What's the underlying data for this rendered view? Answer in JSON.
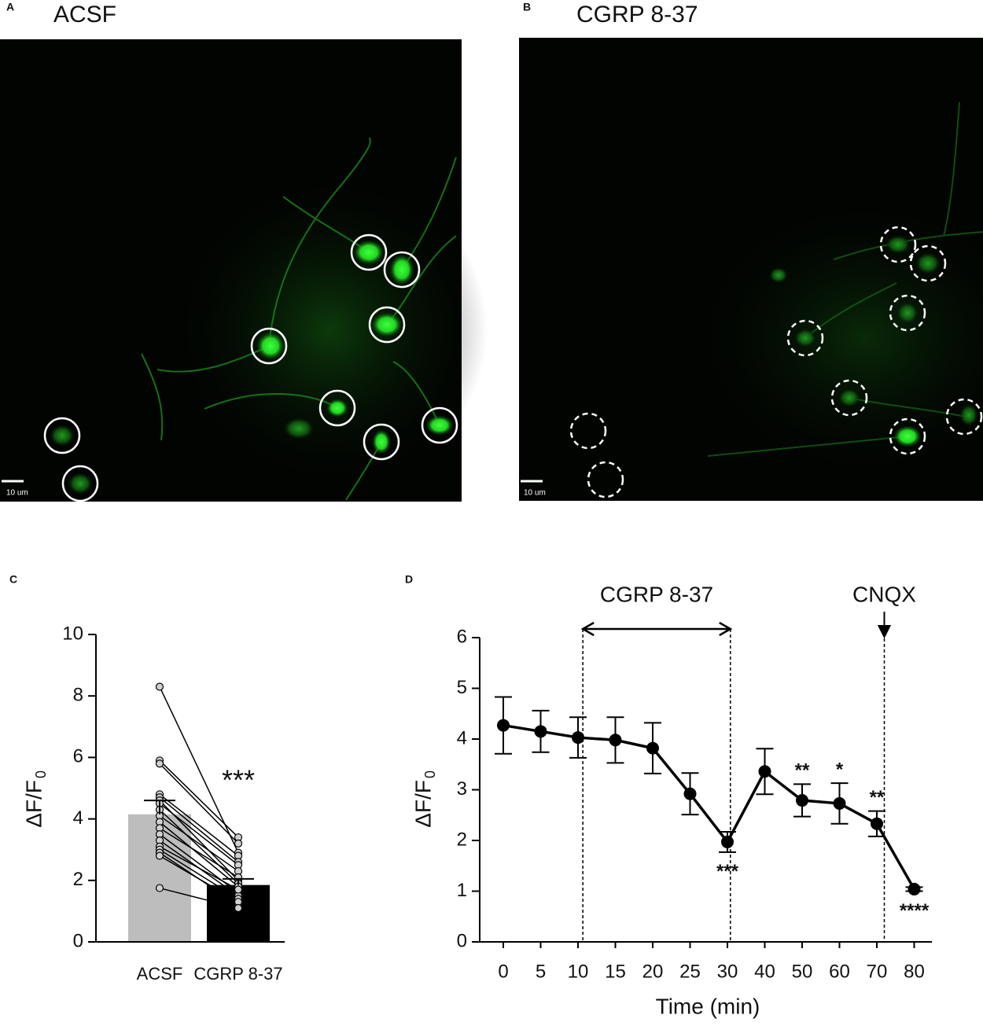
{
  "panels": {
    "A": {
      "label": "A",
      "title": "ACSF",
      "scale_bar": "10 um"
    },
    "B": {
      "label": "B",
      "title": "CGRP 8-37",
      "scale_bar": "10 um"
    }
  },
  "chart_data": [
    {
      "type": "bar",
      "label": "C",
      "y_label": "ΔF/F",
      "y_label_subscript": "0",
      "categories": [
        "ACSF",
        "CGRP 8-37"
      ],
      "values": [
        4.15,
        1.85
      ],
      "errors": [
        0.45,
        0.2
      ],
      "colors": [
        "#bdbdbd",
        "#000000"
      ],
      "paired": [
        [
          8.3,
          2.9
        ],
        [
          5.9,
          3.4
        ],
        [
          5.8,
          3.2
        ],
        [
          4.8,
          2.8
        ],
        [
          4.7,
          2.6
        ],
        [
          4.6,
          2.0
        ],
        [
          4.5,
          2.5
        ],
        [
          4.3,
          1.9
        ],
        [
          4.1,
          2.3
        ],
        [
          3.9,
          1.8
        ],
        [
          3.7,
          2.1
        ],
        [
          3.5,
          1.6
        ],
        [
          3.3,
          1.5
        ],
        [
          3.1,
          1.7
        ],
        [
          3.0,
          1.4
        ],
        [
          2.9,
          1.2
        ],
        [
          2.8,
          1.3
        ],
        [
          1.75,
          1.1
        ]
      ],
      "annotation": "***",
      "ylim": [
        0,
        10
      ],
      "yticks": [
        0,
        2,
        4,
        6,
        8,
        10
      ]
    },
    {
      "type": "line",
      "label": "D",
      "y_label": "ΔF/F",
      "y_label_subscript": "0",
      "x_label": "Time (min)",
      "categories": [
        "0",
        "5",
        "10",
        "15",
        "20",
        "25",
        "30",
        "40",
        "50",
        "60",
        "70",
        "80"
      ],
      "values": [
        4.27,
        4.15,
        4.03,
        3.98,
        3.82,
        2.92,
        1.97,
        3.36,
        2.79,
        2.73,
        2.33,
        1.04
      ],
      "errors": [
        0.56,
        0.41,
        0.4,
        0.45,
        0.5,
        0.41,
        0.2,
        0.45,
        0.32,
        0.4,
        0.25,
        0.04
      ],
      "color": "#000000",
      "annotations": [
        {
          "text": "***",
          "index": 6,
          "side": "below"
        },
        {
          "text": "**",
          "index": 8,
          "side": "above"
        },
        {
          "text": "*",
          "index": 9,
          "side": "above"
        },
        {
          "text": "**",
          "index": 10,
          "side": "above"
        },
        {
          "text": "****",
          "index": 11,
          "side": "below"
        }
      ],
      "treatments": [
        "CGRP 8-37",
        "CNQX"
      ],
      "ylim": [
        0,
        6
      ],
      "yticks": [
        0,
        1,
        2,
        3,
        4,
        5,
        6
      ]
    }
  ]
}
